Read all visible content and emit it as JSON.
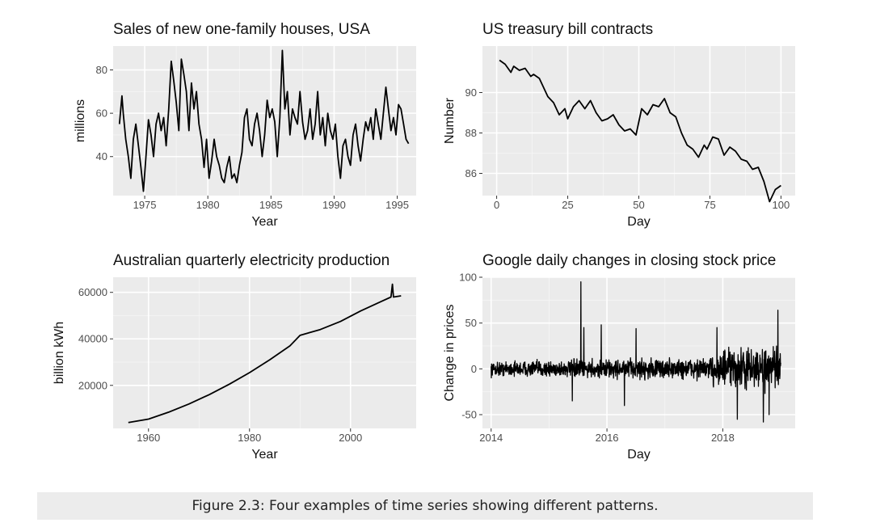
{
  "caption": "Figure 2.3: Four examples of time series showing different patterns.",
  "chart_data": [
    {
      "type": "line",
      "title": "Sales of new one-family houses, USA",
      "xlabel": "Year",
      "ylabel": "millions",
      "xlim": [
        1972.5,
        1996.5
      ],
      "ylim": [
        22,
        91
      ],
      "xticks": [
        1975,
        1980,
        1985,
        1990,
        1995
      ],
      "yticks": [
        40,
        60,
        80
      ],
      "grid": true,
      "x": [
        1973.0,
        1973.2,
        1973.3,
        1973.5,
        1973.7,
        1973.9,
        1974.1,
        1974.3,
        1974.5,
        1974.7,
        1974.9,
        1975.1,
        1975.3,
        1975.5,
        1975.7,
        1975.9,
        1976.1,
        1976.3,
        1976.5,
        1976.7,
        1976.9,
        1977.1,
        1977.3,
        1977.5,
        1977.7,
        1977.9,
        1978.1,
        1978.3,
        1978.5,
        1978.7,
        1978.9,
        1979.1,
        1979.3,
        1979.5,
        1979.7,
        1979.9,
        1980.1,
        1980.3,
        1980.5,
        1980.7,
        1980.9,
        1981.1,
        1981.3,
        1981.5,
        1981.7,
        1981.9,
        1982.1,
        1982.3,
        1982.5,
        1982.7,
        1982.9,
        1983.1,
        1983.3,
        1983.5,
        1983.7,
        1983.9,
        1984.1,
        1984.3,
        1984.5,
        1984.7,
        1984.9,
        1985.1,
        1985.3,
        1985.5,
        1985.7,
        1985.9,
        1986.1,
        1986.3,
        1986.5,
        1986.7,
        1986.9,
        1987.1,
        1987.3,
        1987.5,
        1987.7,
        1987.9,
        1988.1,
        1988.3,
        1988.5,
        1988.7,
        1988.9,
        1989.1,
        1989.3,
        1989.5,
        1989.7,
        1989.9,
        1990.1,
        1990.3,
        1990.5,
        1990.7,
        1990.9,
        1991.1,
        1991.3,
        1991.5,
        1991.7,
        1991.9,
        1992.1,
        1992.3,
        1992.5,
        1992.7,
        1992.9,
        1993.1,
        1993.3,
        1993.5,
        1993.7,
        1993.9,
        1994.1,
        1994.3,
        1994.5,
        1994.7,
        1994.9,
        1995.1,
        1995.3,
        1995.5,
        1995.7,
        1995.9
      ],
      "y": [
        55,
        68,
        60,
        48,
        40,
        30,
        48,
        55,
        45,
        35,
        24,
        40,
        57,
        50,
        40,
        55,
        60,
        52,
        58,
        45,
        62,
        84,
        75,
        65,
        52,
        85,
        78,
        70,
        52,
        74,
        62,
        70,
        55,
        48,
        35,
        48,
        30,
        38,
        48,
        40,
        36,
        30,
        28,
        35,
        40,
        30,
        32,
        28,
        36,
        42,
        58,
        62,
        48,
        45,
        55,
        60,
        52,
        40,
        50,
        66,
        58,
        62,
        56,
        40,
        58,
        89,
        62,
        70,
        50,
        62,
        58,
        55,
        70,
        56,
        48,
        52,
        62,
        48,
        55,
        70,
        50,
        58,
        45,
        60,
        52,
        48,
        55,
        40,
        30,
        45,
        48,
        40,
        36,
        50,
        55,
        45,
        38,
        48,
        56,
        52,
        58,
        48,
        62,
        55,
        48,
        60,
        72,
        62,
        52,
        58,
        50,
        64,
        62,
        55,
        48,
        46
      ]
    },
    {
      "type": "line",
      "title": "US treasury bill contracts",
      "xlabel": "Day",
      "ylabel": "Number",
      "xlim": [
        -5,
        105
      ],
      "ylim": [
        84.9,
        92.3
      ],
      "xticks": [
        0,
        25,
        50,
        75,
        100
      ],
      "yticks": [
        86,
        88,
        90
      ],
      "grid": true,
      "x": [
        1,
        3,
        5,
        6,
        8,
        10,
        12,
        13,
        15,
        18,
        20,
        22,
        24,
        25,
        27,
        29,
        31,
        33,
        35,
        37,
        39,
        41,
        43,
        45,
        47,
        49,
        51,
        53,
        55,
        57,
        59,
        61,
        63,
        65,
        67,
        69,
        71,
        73,
        74,
        76,
        78,
        80,
        82,
        84,
        86,
        88,
        90,
        92,
        94,
        96,
        98,
        99,
        100
      ],
      "y": [
        91.6,
        91.4,
        91.0,
        91.3,
        91.1,
        91.2,
        90.8,
        90.9,
        90.7,
        89.8,
        89.5,
        88.9,
        89.2,
        88.7,
        89.3,
        89.6,
        89.2,
        89.6,
        89.0,
        88.6,
        88.7,
        88.9,
        88.4,
        88.1,
        88.2,
        87.9,
        89.2,
        88.9,
        89.4,
        89.3,
        89.7,
        89.0,
        88.8,
        88.0,
        87.4,
        87.2,
        86.8,
        87.4,
        87.2,
        87.8,
        87.7,
        86.9,
        87.3,
        87.1,
        86.7,
        86.6,
        86.2,
        86.3,
        85.6,
        84.6,
        85.2,
        85.3,
        85.4
      ]
    },
    {
      "type": "line",
      "title": "Australian quarterly electricity production",
      "xlabel": "Year",
      "ylabel": "billion kWh",
      "xlim": [
        1953,
        2013
      ],
      "ylim": [
        1500,
        66500
      ],
      "xticks": [
        1960,
        1980,
        2000
      ],
      "yticks": [
        20000,
        40000,
        60000
      ],
      "tick_labels": [
        "20000",
        "40000",
        "60000"
      ],
      "grid": true,
      "x": [
        1956,
        1960,
        1964,
        1968,
        1972,
        1976,
        1980,
        1984,
        1988,
        1990,
        1994,
        1998,
        2002,
        2006,
        2008,
        2008.3,
        2008.5,
        2010
      ],
      "y": [
        4000,
        5500,
        8500,
        12000,
        16000,
        20500,
        25500,
        31000,
        37000,
        41500,
        44000,
        47500,
        52000,
        56000,
        58000,
        63500,
        58000,
        58500
      ]
    },
    {
      "type": "line",
      "title": "Google daily changes in closing stock price",
      "xlabel": "Day",
      "ylabel": "Change in prices",
      "xlim": [
        2013.85,
        2019.25
      ],
      "ylim": [
        -65,
        100
      ],
      "xticks": [
        2014,
        2016,
        2018
      ],
      "yticks": [
        -50,
        0,
        50,
        100
      ],
      "grid": true,
      "note": "noisy daily series; amplitude grows toward 2018 with spikes at about 2015.55 (+95), 2016.5 (+44), 2017.9 (+45), 2018.25 (-55), 2018.7 (-58), 2018.95 (+64)"
    }
  ]
}
